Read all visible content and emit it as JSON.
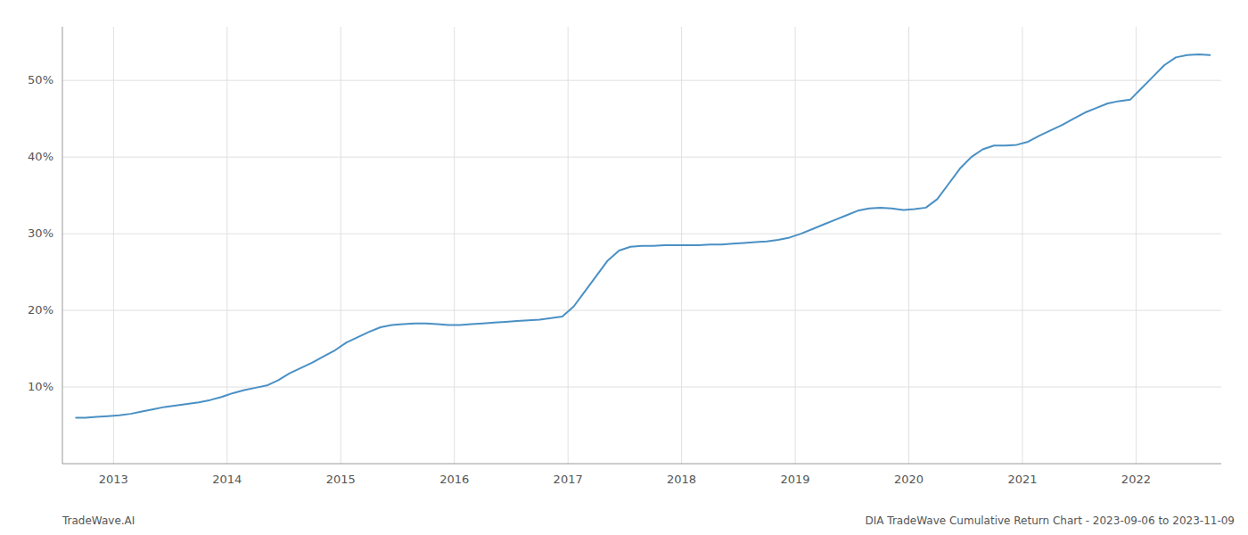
{
  "chart_data": {
    "type": "line",
    "annotations": [
      "TradeWave.AI",
      "DIA TradeWave Cumulative Return Chart - 2023-09-06 to 2023-11-09"
    ],
    "color": "#4a90c4",
    "grid": true,
    "x": [
      2012.67,
      2012.75,
      2012.85,
      2012.95,
      2013.05,
      2013.15,
      2013.25,
      2013.35,
      2013.45,
      2013.55,
      2013.65,
      2013.75,
      2013.85,
      2013.95,
      2014.05,
      2014.15,
      2014.25,
      2014.35,
      2014.45,
      2014.55,
      2014.65,
      2014.75,
      2014.85,
      2014.95,
      2015.05,
      2015.15,
      2015.25,
      2015.35,
      2015.45,
      2015.55,
      2015.65,
      2015.75,
      2015.85,
      2015.95,
      2016.05,
      2016.15,
      2016.25,
      2016.35,
      2016.45,
      2016.55,
      2016.65,
      2016.75,
      2016.85,
      2016.95,
      2017.05,
      2017.15,
      2017.25,
      2017.35,
      2017.45,
      2017.55,
      2017.65,
      2017.75,
      2017.85,
      2017.95,
      2018.05,
      2018.15,
      2018.25,
      2018.35,
      2018.45,
      2018.55,
      2018.65,
      2018.75,
      2018.85,
      2018.95,
      2019.05,
      2019.15,
      2019.25,
      2019.35,
      2019.45,
      2019.55,
      2019.65,
      2019.75,
      2019.85,
      2019.95,
      2020.05,
      2020.15,
      2020.25,
      2020.35,
      2020.45,
      2020.55,
      2020.65,
      2020.75,
      2020.85,
      2020.95,
      2021.05,
      2021.15,
      2021.25,
      2021.35,
      2021.45,
      2021.55,
      2021.65,
      2021.75,
      2021.85,
      2021.95,
      2022.05,
      2022.15,
      2022.25,
      2022.35,
      2022.45,
      2022.55,
      2022.65
    ],
    "values": [
      6.0,
      6.0,
      6.1,
      6.2,
      6.3,
      6.5,
      6.8,
      7.1,
      7.4,
      7.6,
      7.8,
      8.0,
      8.3,
      8.7,
      9.2,
      9.6,
      9.9,
      10.2,
      10.9,
      11.8,
      12.5,
      13.2,
      14.0,
      14.8,
      15.8,
      16.5,
      17.2,
      17.8,
      18.1,
      18.2,
      18.3,
      18.3,
      18.2,
      18.1,
      18.1,
      18.2,
      18.3,
      18.4,
      18.5,
      18.6,
      18.7,
      18.8,
      19.0,
      19.2,
      20.5,
      22.5,
      24.5,
      26.5,
      27.8,
      28.3,
      28.4,
      28.4,
      28.5,
      28.5,
      28.5,
      28.5,
      28.6,
      28.6,
      28.7,
      28.8,
      28.9,
      29.0,
      29.2,
      29.5,
      30.0,
      30.6,
      31.2,
      31.8,
      32.4,
      33.0,
      33.3,
      33.4,
      33.3,
      33.1,
      33.2,
      33.4,
      34.5,
      36.5,
      38.5,
      40.0,
      41.0,
      41.5,
      41.5,
      41.6,
      42.0,
      42.8,
      43.5,
      44.2,
      45.0,
      45.8,
      46.4,
      47.0,
      47.3,
      47.5,
      49.0,
      50.5,
      52.0,
      53.0,
      53.3,
      53.4,
      53.3
    ],
    "xlim": [
      2012.55,
      2022.75
    ],
    "xticks": [
      2013,
      2014,
      2015,
      2016,
      2017,
      2018,
      2019,
      2020,
      2021,
      2022
    ],
    "ylim": [
      0,
      57
    ],
    "yticks": [
      {
        "value": 10,
        "label": "10%"
      },
      {
        "value": 20,
        "label": "20%"
      },
      {
        "value": 30,
        "label": "30%"
      },
      {
        "value": 40,
        "label": "40%"
      },
      {
        "value": 50,
        "label": "50%"
      }
    ]
  }
}
